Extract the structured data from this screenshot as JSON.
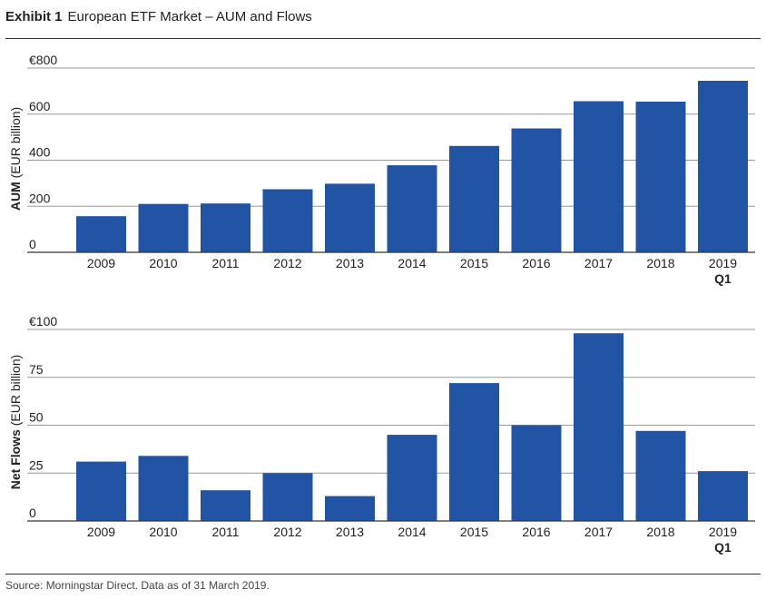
{
  "header": {
    "exhibit": "Exhibit 1",
    "title": "European ETF Market – AUM and Flows"
  },
  "colors": {
    "bar": "#2154a4",
    "grid": "#999999",
    "axis": "#333333",
    "text": "#222222"
  },
  "chart_data": [
    {
      "type": "bar",
      "title": "",
      "ylabel_bold": "AUM",
      "ylabel_rest": " (EUR billion)",
      "xlabel": "",
      "categories": [
        "2009",
        "2010",
        "2011",
        "2012",
        "2013",
        "2014",
        "2015",
        "2016",
        "2017",
        "2018",
        "2019"
      ],
      "category_sublabels": [
        "",
        "",
        "",
        "",
        "",
        "",
        "",
        "",
        "",
        "",
        "Q1"
      ],
      "values": [
        157,
        210,
        212,
        274,
        298,
        378,
        462,
        538,
        656,
        654,
        745
      ],
      "yticks": [
        0,
        200,
        400,
        600,
        800
      ],
      "ytick_labels": [
        "0",
        "200",
        "400",
        "600",
        "€800"
      ],
      "ylim": [
        0,
        800
      ],
      "grid": true
    },
    {
      "type": "bar",
      "title": "",
      "ylabel_bold": "Net Flows",
      "ylabel_rest": " (EUR billion)",
      "xlabel": "",
      "categories": [
        "2009",
        "2010",
        "2011",
        "2012",
        "2013",
        "2014",
        "2015",
        "2016",
        "2017",
        "2018",
        "2019"
      ],
      "category_sublabels": [
        "",
        "",
        "",
        "",
        "",
        "",
        "",
        "",
        "",
        "",
        "Q1"
      ],
      "values": [
        31,
        34,
        16,
        25,
        13,
        45,
        72,
        50,
        98,
        47,
        26
      ],
      "yticks": [
        0,
        25,
        50,
        75,
        100
      ],
      "ytick_labels": [
        "0",
        "25",
        "50",
        "75",
        "€100"
      ],
      "ylim": [
        0,
        100
      ],
      "grid": true
    }
  ],
  "footer": {
    "source": "Source: Morningstar Direct. Data as of 31 March 2019."
  }
}
